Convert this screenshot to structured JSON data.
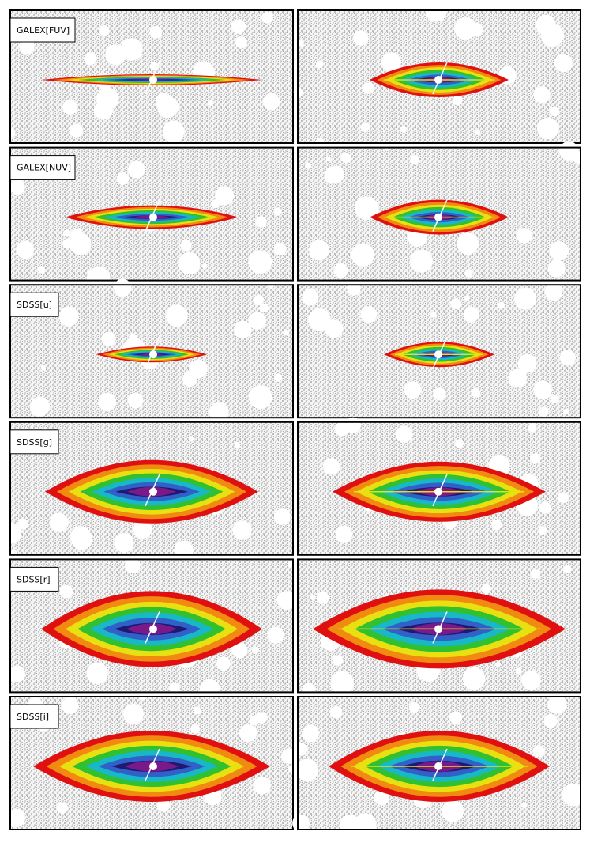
{
  "panels": [
    {
      "label": "GALEX[FUV]"
    },
    {
      "label": "GALEX[NUV]"
    },
    {
      "label": "SDSS[u]"
    },
    {
      "label": "SDSS[g]"
    },
    {
      "label": "SDSS[r]"
    },
    {
      "label": "SDSS[i]"
    }
  ]
}
